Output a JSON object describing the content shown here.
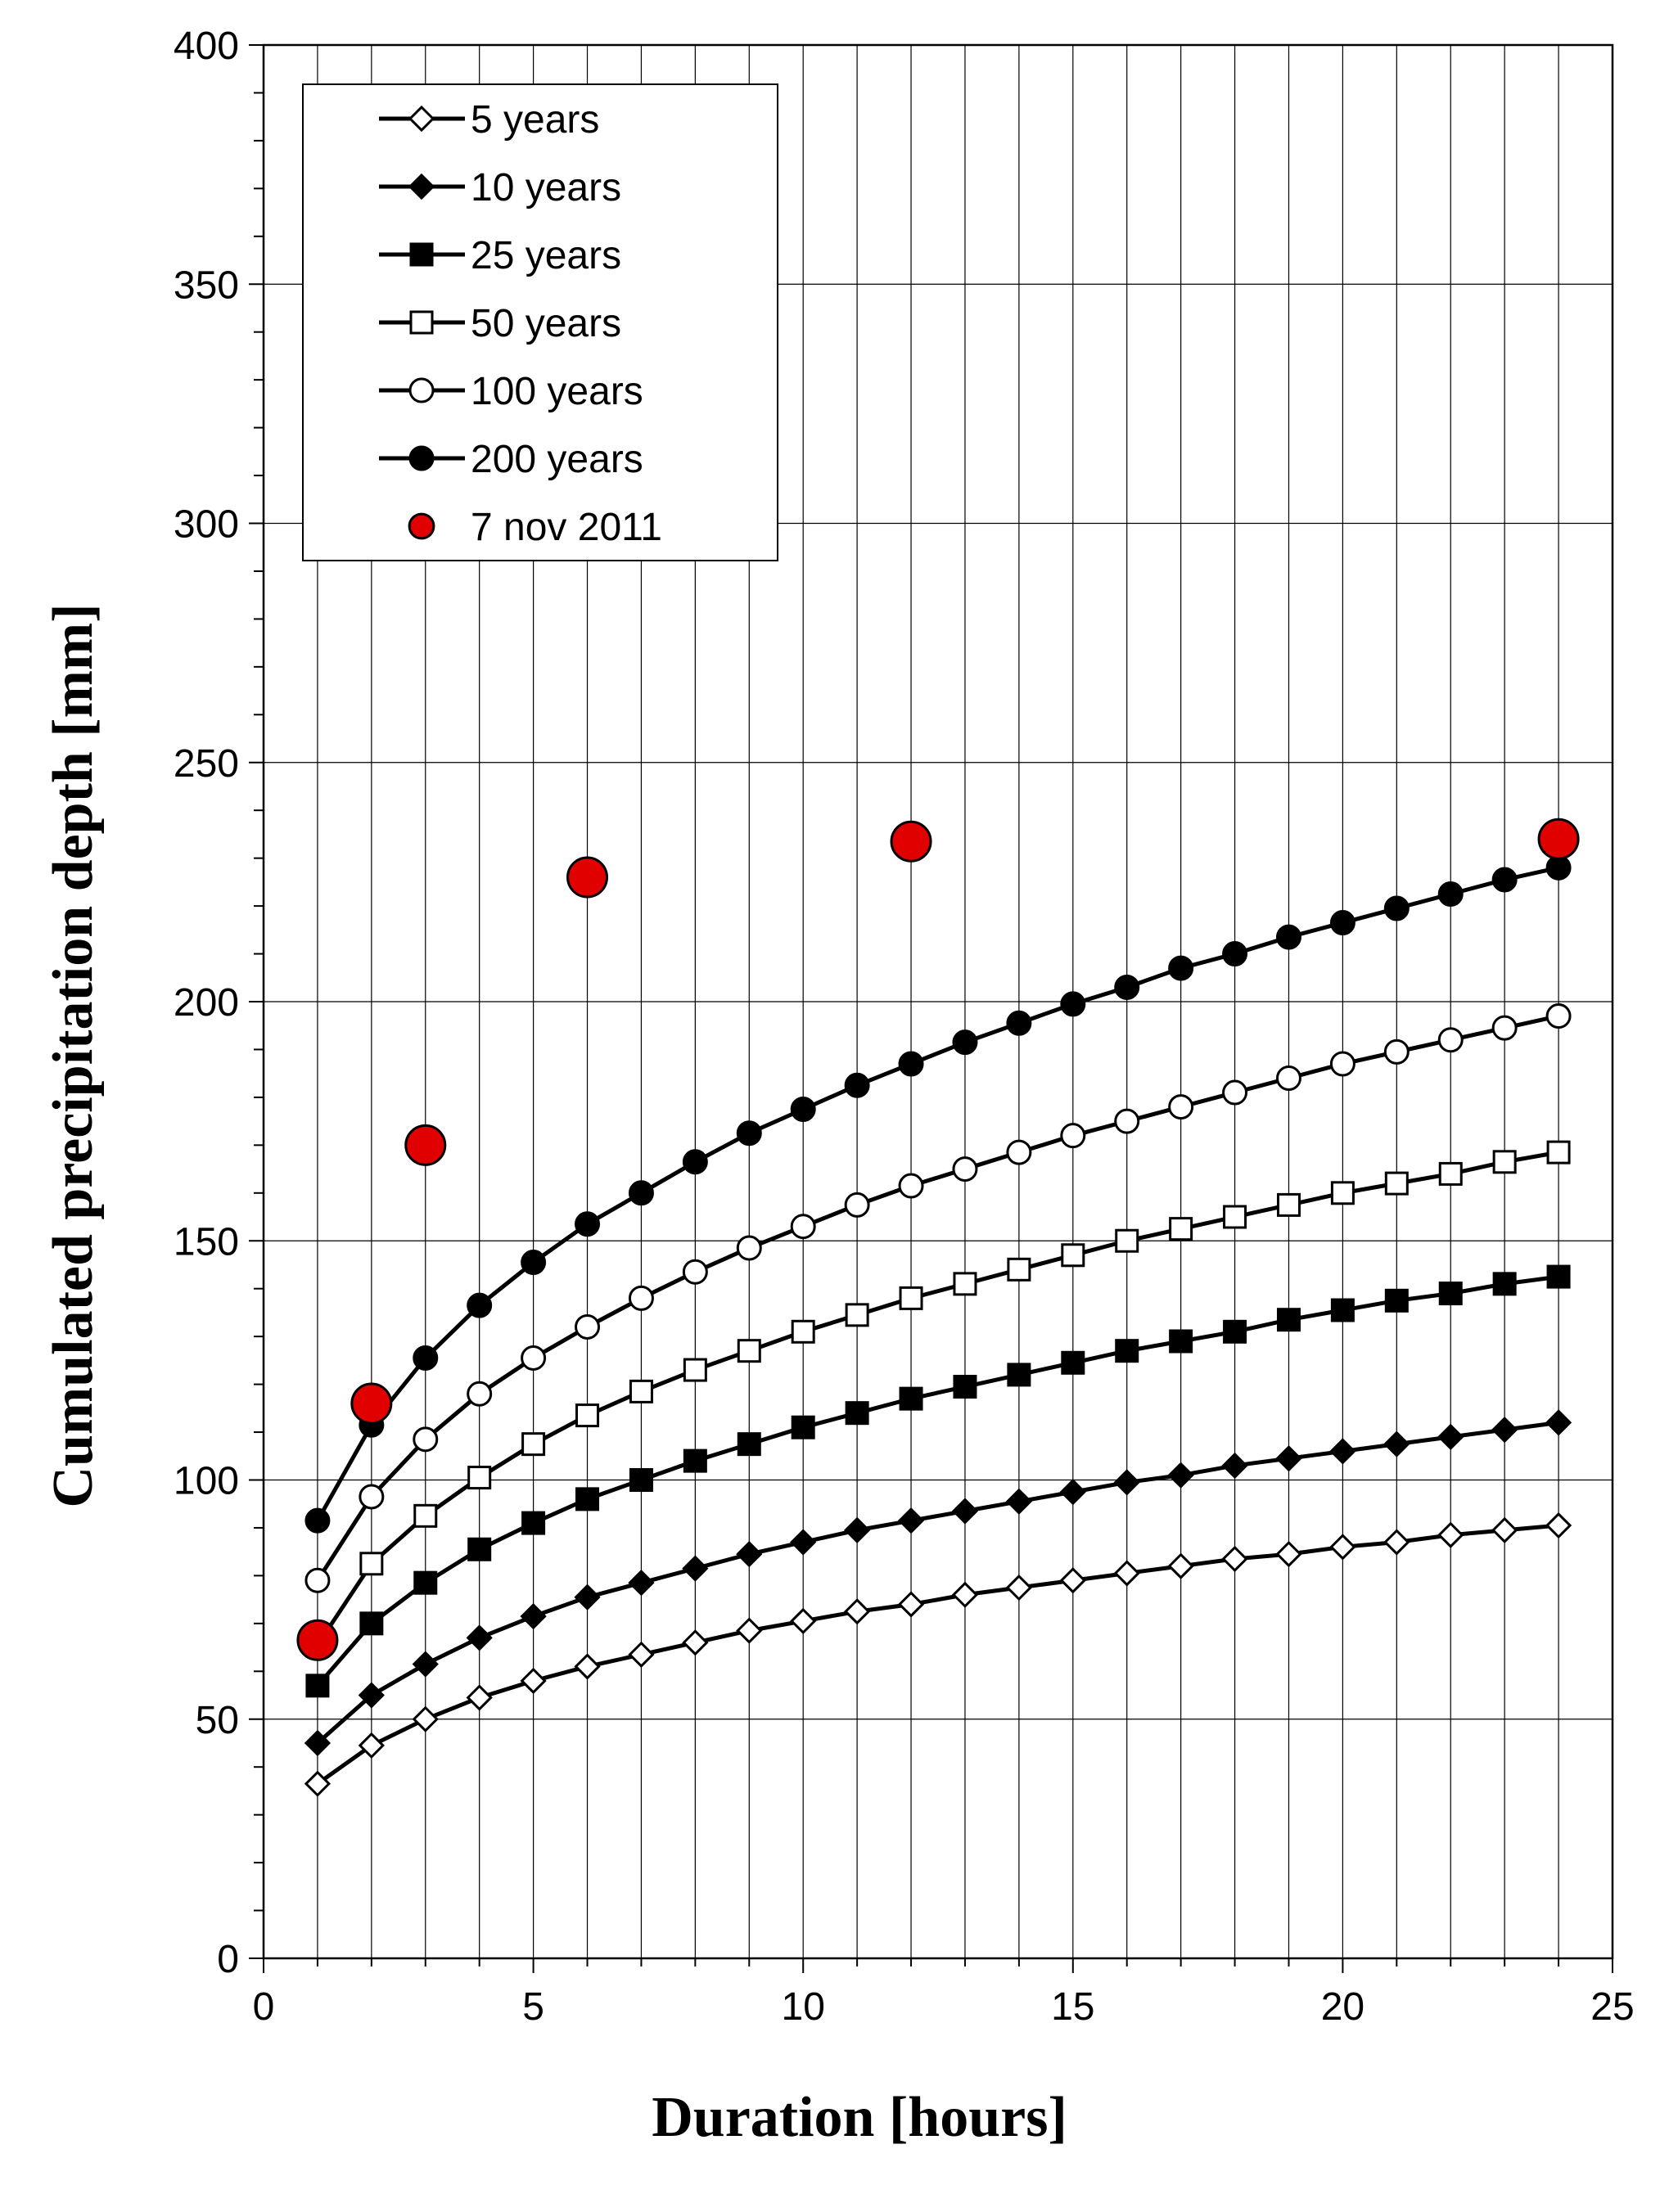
{
  "chart_data": {
    "type": "line",
    "xlabel": "Duration [hours]",
    "ylabel": "Cumulated precipitation depth [mm]",
    "xlim": [
      0,
      25
    ],
    "ylim": [
      0,
      400
    ],
    "xticks": [
      "0",
      "5",
      "10",
      "15",
      "20",
      "25"
    ],
    "yticks": [
      "0",
      "50",
      "100",
      "150",
      "200",
      "250",
      "300",
      "350",
      "400"
    ],
    "grid": true,
    "legend_position": "top-left",
    "x": [
      1,
      2,
      3,
      4,
      5,
      6,
      7,
      8,
      9,
      10,
      11,
      12,
      13,
      14,
      15,
      16,
      17,
      18,
      19,
      20,
      21,
      22,
      23,
      24
    ],
    "series": [
      {
        "name": "5 years",
        "marker": "diamond-open",
        "values": [
          36.5,
          44.5,
          50,
          54.5,
          58,
          61,
          63.5,
          66,
          68.5,
          70.5,
          72.5,
          74,
          76,
          77.5,
          79,
          80.5,
          82,
          83.5,
          84.5,
          86,
          87,
          88.5,
          89.5,
          90.5
        ]
      },
      {
        "name": "10 years",
        "marker": "diamond-filled",
        "values": [
          45,
          55,
          61.5,
          67,
          71.5,
          75.5,
          78.5,
          81.5,
          84.5,
          87,
          89.5,
          91.5,
          93.5,
          95.5,
          97.5,
          99.5,
          101,
          103,
          104.5,
          106,
          107.5,
          109,
          110.5,
          112
        ]
      },
      {
        "name": "25 years",
        "marker": "square-filled",
        "values": [
          57,
          70,
          78.5,
          85.5,
          91,
          96,
          100,
          104,
          107.5,
          111,
          114,
          117,
          119.5,
          122,
          124.5,
          127,
          129,
          131,
          133.5,
          135.5,
          137.5,
          139,
          141,
          142.5
        ]
      },
      {
        "name": "50 years",
        "marker": "square-open",
        "values": [
          65.5,
          82.5,
          92.5,
          100.5,
          107.5,
          113.5,
          118.5,
          123,
          127,
          131,
          134.5,
          138,
          141,
          144,
          147,
          150,
          152.5,
          155,
          157.5,
          160,
          162,
          164,
          166.5,
          168.5
        ]
      },
      {
        "name": "100 years",
        "marker": "circle-open",
        "values": [
          79,
          96.5,
          108.5,
          118,
          125.5,
          132,
          138,
          143.5,
          148.5,
          153,
          157.5,
          161.5,
          165,
          168.5,
          172,
          175,
          178,
          181,
          184,
          187,
          189.5,
          192,
          194.5,
          197
        ]
      },
      {
        "name": "200 years",
        "marker": "circle-filled",
        "values": [
          91.5,
          111.5,
          125.5,
          136.5,
          145.5,
          153.5,
          160,
          166.5,
          172.5,
          177.5,
          182.5,
          187,
          191.5,
          195.5,
          199.5,
          203,
          207,
          210,
          213.5,
          216.5,
          219.5,
          222.5,
          225.5,
          228
        ]
      }
    ],
    "observed": {
      "name": "7 nov 2011",
      "marker": "circle-red",
      "color": "#e00000",
      "x": [
        1,
        2,
        3,
        6,
        12,
        24
      ],
      "values": [
        66.5,
        116,
        170,
        226,
        233.5,
        234
      ]
    }
  }
}
